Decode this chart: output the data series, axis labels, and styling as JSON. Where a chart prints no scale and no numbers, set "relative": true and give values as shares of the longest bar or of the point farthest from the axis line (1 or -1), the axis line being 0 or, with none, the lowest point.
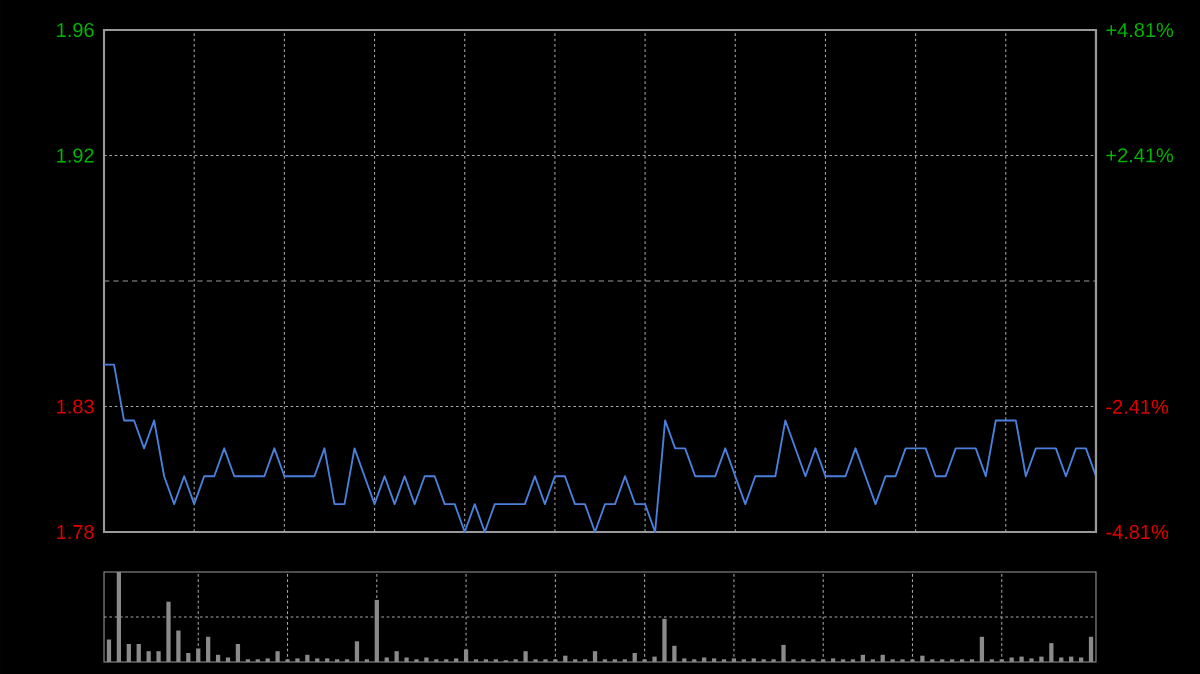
{
  "chart_data": [
    {
      "type": "line",
      "categories": [
        null,
        null,
        null,
        null,
        null,
        null,
        null,
        null,
        null,
        null,
        null,
        null,
        null,
        null,
        null,
        null,
        null,
        null,
        null,
        null,
        null,
        null,
        null,
        null,
        null,
        null,
        null,
        null,
        null,
        null,
        null,
        null,
        null,
        null,
        null,
        null,
        null,
        null,
        null,
        null,
        null,
        null,
        null,
        null,
        null,
        null,
        null,
        null,
        null,
        null,
        null,
        null,
        null,
        null,
        null,
        null,
        null,
        null,
        null,
        null,
        null,
        null,
        null,
        null,
        null,
        null,
        null,
        null,
        null,
        null,
        null,
        null,
        null,
        null,
        null,
        null,
        null,
        null,
        null,
        null,
        null,
        null,
        null,
        null,
        null,
        null,
        null,
        null,
        null,
        null,
        null,
        null,
        null,
        null,
        null,
        null,
        null,
        null,
        null,
        null
      ],
      "series": [
        {
          "color": "#4a80dc",
          "values": [
            1.84,
            1.84,
            1.82,
            1.82,
            1.81,
            1.82,
            1.8,
            1.79,
            1.8,
            1.79,
            1.8,
            1.8,
            1.81,
            1.8,
            1.8,
            1.8,
            1.8,
            1.81,
            1.8,
            1.8,
            1.8,
            1.8,
            1.81,
            1.79,
            1.79,
            1.81,
            1.8,
            1.79,
            1.8,
            1.79,
            1.8,
            1.79,
            1.8,
            1.8,
            1.79,
            1.79,
            1.78,
            1.79,
            1.78,
            1.79,
            1.79,
            1.79,
            1.79,
            1.8,
            1.79,
            1.8,
            1.8,
            1.79,
            1.79,
            1.78,
            1.79,
            1.79,
            1.8,
            1.79,
            1.79,
            1.78,
            1.82,
            1.81,
            1.81,
            1.8,
            1.8,
            1.8,
            1.81,
            1.8,
            1.79,
            1.8,
            1.8,
            1.8,
            1.82,
            1.81,
            1.8,
            1.81,
            1.8,
            1.8,
            1.8,
            1.81,
            1.8,
            1.79,
            1.8,
            1.8,
            1.81,
            1.81,
            1.81,
            1.8,
            1.8,
            1.81,
            1.81,
            1.81,
            1.8,
            1.82,
            1.82,
            1.82,
            1.8,
            1.81,
            1.81,
            1.81,
            1.8,
            1.81,
            1.81,
            1.8
          ]
        }
      ],
      "ylim": [
        1.78,
        1.96
      ],
      "yticks": [
        1.96,
        {
          "value": 1.915,
          "label": "1.92"
        },
        {
          "value": 1.825,
          "label": "1.83"
        },
        1.78
      ],
      "y2lim": [
        -4.81,
        4.81
      ],
      "y2ticks": [
        {
          "value": 4.81,
          "label": "+4.81%"
        },
        {
          "value": 2.41,
          "label": "+2.41%"
        },
        {
          "value": -2.41,
          "label": "-2.41%"
        },
        {
          "value": -4.81,
          "label": "-4.81%"
        }
      ],
      "ref_lines": [
        {
          "axis": "y",
          "value": 1.87,
          "line_style": "dashed"
        }
      ],
      "grid": true,
      "tick_labels": "y"
    },
    {
      "type": "bar",
      "relative": true,
      "grid": true,
      "categories": [
        null,
        null,
        null,
        null,
        null,
        null,
        null,
        null,
        null,
        null,
        null,
        null,
        null,
        null,
        null,
        null,
        null,
        null,
        null,
        null,
        null,
        null,
        null,
        null,
        null,
        null,
        null,
        null,
        null,
        null,
        null,
        null,
        null,
        null,
        null,
        null,
        null,
        null,
        null,
        null,
        null,
        null,
        null,
        null,
        null,
        null,
        null,
        null,
        null,
        null,
        null,
        null,
        null,
        null,
        null,
        null,
        null,
        null,
        null,
        null,
        null,
        null,
        null,
        null,
        null,
        null,
        null,
        null,
        null,
        null,
        null,
        null,
        null,
        null,
        null,
        null,
        null,
        null,
        null,
        null,
        null,
        null,
        null,
        null,
        null,
        null,
        null,
        null,
        null,
        null,
        null,
        null,
        null,
        null,
        null,
        null,
        null,
        null,
        null,
        null
      ],
      "color": "#8a8a8a",
      "values": [
        0.25,
        1.0,
        0.2,
        0.2,
        0.12,
        0.12,
        0.67,
        0.35,
        0.1,
        0.15,
        0.28,
        0.08,
        0.05,
        0.2,
        0.03,
        0.03,
        0.04,
        0.12,
        0.03,
        0.04,
        0.08,
        0.04,
        0.04,
        0.03,
        0.03,
        0.23,
        0.03,
        0.69,
        0.05,
        0.12,
        0.05,
        0.03,
        0.05,
        0.03,
        0.03,
        0.04,
        0.14,
        0.03,
        0.03,
        0.03,
        0.02,
        0.03,
        0.12,
        0.03,
        0.03,
        0.03,
        0.07,
        0.03,
        0.03,
        0.12,
        0.03,
        0.03,
        0.03,
        0.1,
        0.03,
        0.06,
        0.48,
        0.18,
        0.04,
        0.03,
        0.05,
        0.04,
        0.03,
        0.04,
        0.03,
        0.04,
        0.03,
        0.03,
        0.19,
        0.03,
        0.03,
        0.03,
        0.03,
        0.04,
        0.03,
        0.03,
        0.08,
        0.03,
        0.08,
        0.03,
        0.03,
        0.03,
        0.07,
        0.03,
        0.03,
        0.03,
        0.03,
        0.03,
        0.28,
        0.03,
        0.03,
        0.05,
        0.06,
        0.04,
        0.06,
        0.21,
        0.05,
        0.06,
        0.05,
        0.28
      ]
    }
  ]
}
